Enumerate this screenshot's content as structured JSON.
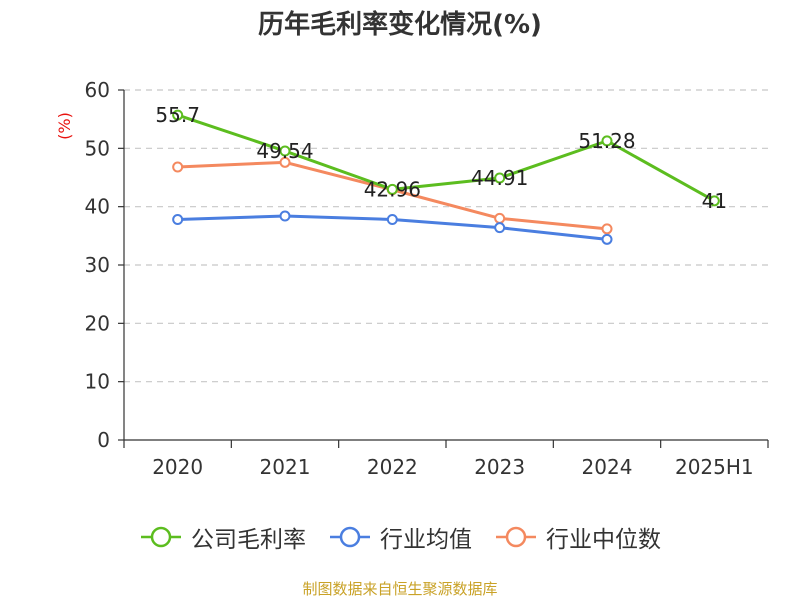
{
  "chart_data": {
    "type": "line",
    "title": "历年毛利率变化情况(%)",
    "ylabel": "(%)",
    "xlabel": "",
    "categories": [
      "2020",
      "2021",
      "2022",
      "2023",
      "2024",
      "2025H1"
    ],
    "ylim": [
      0,
      60
    ],
    "yticks": [
      0,
      10,
      20,
      30,
      40,
      50,
      60
    ],
    "grid": true,
    "legend_position": "bottom",
    "series": [
      {
        "name": "公司毛利率",
        "color": "#5cbd1f",
        "values": [
          55.7,
          49.54,
          42.96,
          44.91,
          51.28,
          41
        ],
        "labels": [
          "55.7",
          "49.54",
          "42.96",
          "44.91",
          "51.28",
          "41"
        ]
      },
      {
        "name": "行业均值",
        "color": "#4a7ee0",
        "values": [
          37.8,
          38.4,
          37.8,
          36.4,
          34.4,
          null
        ]
      },
      {
        "name": "行业中位数",
        "color": "#f4895f",
        "values": [
          46.8,
          47.6,
          42.9,
          38.0,
          36.2,
          null
        ]
      }
    ]
  },
  "footer": "制图数据来自恒生聚源数据库"
}
